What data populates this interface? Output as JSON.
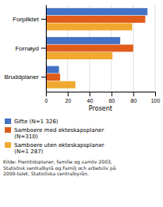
{
  "chart_data": {
    "type": "bar",
    "orientation": "horizontal",
    "categories": [
      "Forpliktet",
      "Fornøyd",
      "Bruddplaner"
    ],
    "series": [
      {
        "name": "Gifte (N=1 326)",
        "color": "#4472C4",
        "values": [
          93,
          68,
          12
        ]
      },
      {
        "name": "Samboere med ekteskapsplaner\n(N=310)",
        "color": "#E05C1A",
        "values": [
          91,
          80,
          13
        ]
      },
      {
        "name": "Samboere uten ekteskapsplaner\n(N=1 287)",
        "color": "#F0A830",
        "values": [
          79,
          61,
          27
        ]
      }
    ],
    "x_label": "Prosent",
    "xlim": [
      0,
      100
    ],
    "xticks": [
      0,
      20,
      40,
      60,
      80,
      100
    ],
    "grid": true,
    "legend": "bottom",
    "annotations": [
      "Kilde: Fremtidsplaner, familie og samliv 2003,\nStatistisk sentralbyrå og Familj och arbetsliv på\n2000-talet, Statistiska centralbyrån."
    ]
  }
}
